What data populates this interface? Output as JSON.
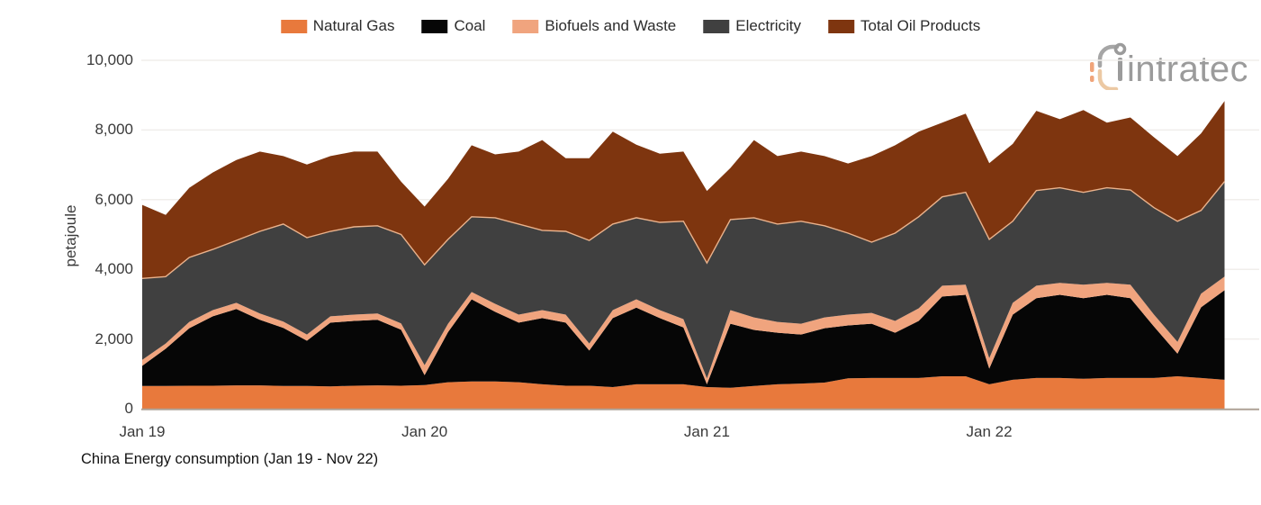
{
  "legend": {
    "items": [
      {
        "label": "Natural Gas",
        "color": "#E8793C"
      },
      {
        "label": "Coal",
        "color": "#060606"
      },
      {
        "label": "Biofuels and Waste",
        "color": "#F0A47E"
      },
      {
        "label": "Electricity",
        "color": "#404040"
      },
      {
        "label": "Total Oil Products",
        "color": "#7E350F"
      }
    ]
  },
  "logo": {
    "text": "intratec"
  },
  "y_axis": {
    "title": "petajoule",
    "ticks": [
      {
        "label": "10,000",
        "value": 10000
      },
      {
        "label": "8,000",
        "value": 8000
      },
      {
        "label": "6,000",
        "value": 6000
      },
      {
        "label": "4,000",
        "value": 4000
      },
      {
        "label": "2,000",
        "value": 2000
      },
      {
        "label": "0",
        "value": 0
      }
    ]
  },
  "x_axis": {
    "ticks": [
      {
        "label": "Jan 19",
        "index": 0
      },
      {
        "label": "Jan 20",
        "index": 12
      },
      {
        "label": "Jan 21",
        "index": 24
      },
      {
        "label": "Jan 22",
        "index": 36
      }
    ]
  },
  "caption": "China Energy consumption (Jan 19 - Nov 22)",
  "chart_data": {
    "type": "area",
    "stacked": true,
    "title": "China Energy consumption (Jan 19 - Nov 22)",
    "ylabel": "petajoule",
    "ylim": [
      0,
      10000
    ],
    "grid": true,
    "legend_position": "top",
    "x": [
      "Jan 19",
      "Feb 19",
      "Mar 19",
      "Apr 19",
      "May 19",
      "Jun 19",
      "Jul 19",
      "Aug 19",
      "Sep 19",
      "Oct 19",
      "Nov 19",
      "Dec 19",
      "Jan 20",
      "Feb 20",
      "Mar 20",
      "Apr 20",
      "May 20",
      "Jun 20",
      "Jul 20",
      "Aug 20",
      "Sep 20",
      "Oct 20",
      "Nov 20",
      "Dec 20",
      "Jan 21",
      "Feb 21",
      "Mar 21",
      "Apr 21",
      "May 21",
      "Jun 21",
      "Jul 21",
      "Aug 21",
      "Sep 21",
      "Oct 21",
      "Nov 21",
      "Dec 21",
      "Jan 22",
      "Feb 22",
      "Mar 22",
      "Apr 22",
      "May 22",
      "Jun 22",
      "Jul 22",
      "Aug 22",
      "Sep 22",
      "Oct 22",
      "Nov 22"
    ],
    "series": [
      {
        "name": "Natural Gas",
        "color": "#E8793C",
        "values": [
          650,
          650,
          660,
          660,
          670,
          670,
          650,
          650,
          640,
          660,
          670,
          660,
          680,
          760,
          780,
          780,
          760,
          700,
          660,
          660,
          620,
          700,
          700,
          700,
          620,
          600,
          650,
          700,
          720,
          750,
          870,
          880,
          880,
          880,
          930,
          930,
          700,
          830,
          880,
          880,
          860,
          880,
          880,
          880,
          930,
          880,
          830
        ]
      },
      {
        "name": "Coal",
        "color": "#060606",
        "values": [
          580,
          1070,
          1650,
          1990,
          2190,
          1880,
          1670,
          1300,
          1830,
          1860,
          1880,
          1610,
          280,
          1440,
          2360,
          2000,
          1710,
          1900,
          1810,
          1010,
          1980,
          2200,
          1900,
          1630,
          80,
          1840,
          1610,
          1480,
          1410,
          1560,
          1520,
          1560,
          1300,
          1640,
          2290,
          2340,
          450,
          1870,
          2290,
          2390,
          2310,
          2390,
          2290,
          1480,
          650,
          2030,
          2570
        ]
      },
      {
        "name": "Biofuels and Waste",
        "color": "#F0A47E",
        "values": [
          170,
          150,
          180,
          180,
          180,
          180,
          180,
          180,
          180,
          180,
          180,
          180,
          290,
          240,
          210,
          230,
          230,
          230,
          230,
          200,
          230,
          240,
          230,
          240,
          170,
          390,
          360,
          310,
          310,
          310,
          310,
          310,
          340,
          360,
          310,
          290,
          300,
          340,
          360,
          340,
          390,
          340,
          390,
          340,
          340,
          390,
          390
        ]
      },
      {
        "name": "Electricity",
        "color": "#404040",
        "values": [
          2340,
          1920,
          1850,
          1740,
          1790,
          2360,
          2800,
          2780,
          2440,
          2520,
          2520,
          2550,
          2880,
          2420,
          2160,
          2470,
          2600,
          2290,
          2390,
          2960,
          2470,
          2340,
          2520,
          2810,
          3310,
          2600,
          2860,
          2810,
          2940,
          2630,
          2340,
          2030,
          2520,
          2630,
          2550,
          2650,
          3410,
          2340,
          2730,
          2730,
          2650,
          2730,
          2720,
          3070,
          3460,
          2390,
          2730
        ]
      },
      {
        "name": "Total Oil Products",
        "color": "#7E350F",
        "values": [
          2110,
          1770,
          2000,
          2210,
          2310,
          2290,
          1950,
          2100,
          2160,
          2160,
          2130,
          1520,
          1670,
          1740,
          2050,
          1820,
          2080,
          2590,
          2100,
          2360,
          2650,
          2100,
          1970,
          2000,
          2070,
          1480,
          2230,
          1950,
          2000,
          2000,
          2000,
          2470,
          2520,
          2440,
          2130,
          2260,
          2190,
          2220,
          2290,
          1970,
          2360,
          1870,
          2080,
          2020,
          1870,
          2210,
          2310
        ]
      }
    ],
    "style": {
      "grid_color": "#f0eeeb",
      "axis_line_color": "#ada195",
      "boundary_highlight_color": "#eab28c"
    }
  }
}
